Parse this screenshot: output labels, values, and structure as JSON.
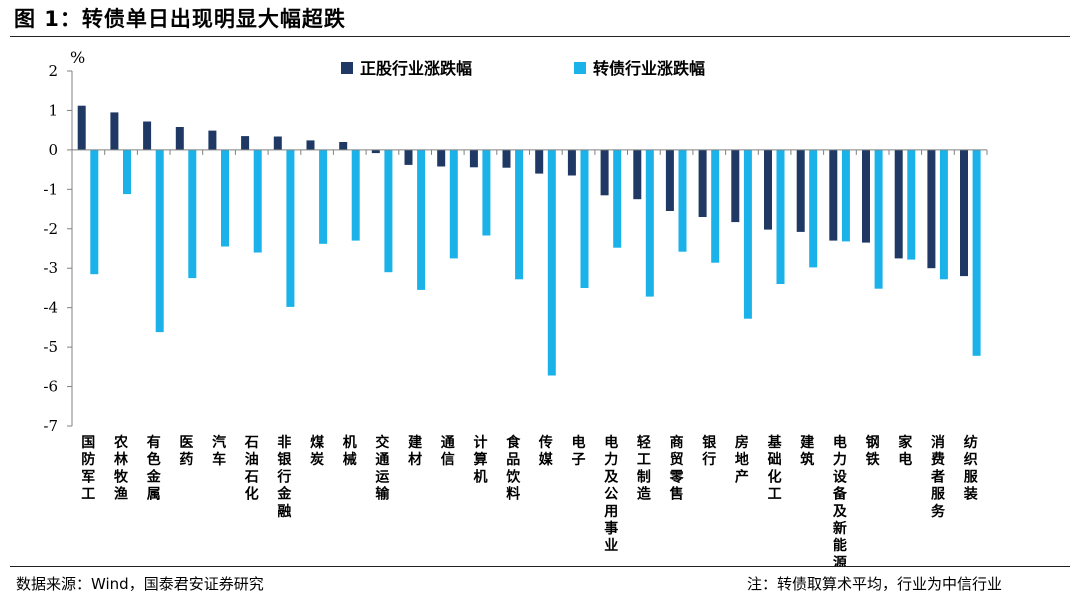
{
  "figure": {
    "title": "图 1：转债单日出现明显大幅超跌",
    "source": "数据来源：Wind，国泰君安证券研究",
    "note": "注：转债取算术平均，行业为中信行业"
  },
  "chart_data": {
    "type": "bar",
    "title": "",
    "xlabel": "",
    "ylabel": "%",
    "ylim": [
      -7,
      2
    ],
    "yticks": [
      2,
      1,
      0,
      -1,
      -2,
      -3,
      -4,
      -5,
      -6,
      -7
    ],
    "grid": false,
    "legend": "top-center",
    "categories": [
      "国防军工",
      "农林牧渔",
      "有色金属",
      "医药",
      "汽车",
      "石油石化",
      "非银行金融",
      "煤炭",
      "机械",
      "交通运输",
      "建材",
      "通信",
      "计算机",
      "食品饮料",
      "传媒",
      "电子",
      "电力及公用事业",
      "轻工制造",
      "商贸零售",
      "银行",
      "房地产",
      "基础化工",
      "建筑",
      "电力设备及新能源",
      "钢铁",
      "家电",
      "消费者服务",
      "纺织服装"
    ],
    "series": [
      {
        "name": "正股行业涨跌幅",
        "color": "#1f3864",
        "values": [
          1.12,
          0.95,
          0.72,
          0.58,
          0.49,
          0.35,
          0.34,
          0.24,
          0.2,
          -0.08,
          -0.38,
          -0.42,
          -0.44,
          -0.45,
          -0.6,
          -0.65,
          -1.15,
          -1.25,
          -1.55,
          -1.7,
          -1.83,
          -2.02,
          -2.08,
          -2.3,
          -2.35,
          -2.75,
          -3.0,
          -3.2
        ]
      },
      {
        "name": "转债行业涨跌幅",
        "color": "#1ab2e8",
        "values": [
          -3.15,
          -1.12,
          -4.62,
          -3.25,
          -2.45,
          -2.6,
          -3.98,
          -2.38,
          -2.3,
          -3.1,
          -3.55,
          -2.75,
          -2.17,
          -3.28,
          -5.72,
          -3.5,
          -2.48,
          -3.72,
          -2.58,
          -2.86,
          -4.28,
          -3.4,
          -2.98,
          -2.32,
          -3.52,
          -2.78,
          -3.28,
          -5.22
        ]
      }
    ]
  }
}
